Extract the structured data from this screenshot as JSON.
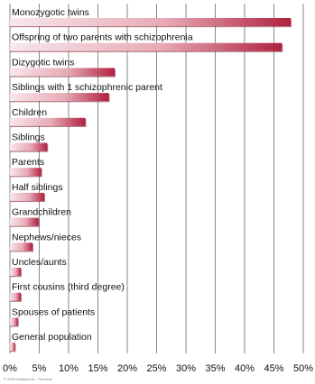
{
  "chart_data": {
    "type": "bar",
    "orientation": "horizontal",
    "categories": [
      "Monozygotic twins",
      "Offspring of two parents with schizophrenia",
      "Dizygotic twins",
      "Siblings with 1 schizophrenic parent",
      "Children",
      "Siblings",
      "Parents",
      "Half siblings",
      "Grandchildren",
      "Nephews/nieces",
      "Uncles/aunts",
      "First cousins (third degree)",
      "Spouses of patients",
      "General population"
    ],
    "values": [
      48,
      46.5,
      18,
      17,
      13,
      6.5,
      5.5,
      6,
      5,
      4,
      2,
      2,
      1.5,
      1
    ],
    "xlim": [
      0,
      50
    ],
    "x_ticks": [
      "0%",
      "5%",
      "10%",
      "15%",
      "20%",
      "25%",
      "30%",
      "35%",
      "40%",
      "45%",
      "50%"
    ],
    "grid": true,
    "title": "",
    "xlabel": "",
    "ylabel": ""
  },
  "footer": {
    "copyright": "© 2006 Wadsworth - Thomson"
  },
  "colors": {
    "bar_light": "#f8e8ec",
    "bar_dark": "#b0213e",
    "grid": "#555555",
    "text": "#111111"
  }
}
